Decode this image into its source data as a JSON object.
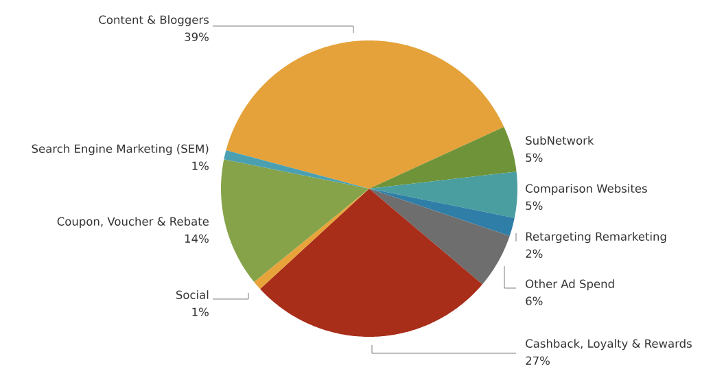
{
  "chart_data": {
    "type": "pie",
    "categories": [
      "Content & Bloggers",
      "SubNetwork",
      "Comparison Websites",
      "Retargeting Remarketing",
      "Other Ad Spend",
      "Cashback, Loyalty & Rewards",
      "Social",
      "Coupon, Voucher & Rebate",
      "Search Engine Marketing (SEM)"
    ],
    "values": [
      39,
      5,
      5,
      2,
      6,
      27,
      1,
      14,
      1
    ],
    "value_labels": [
      "39%",
      "5%",
      "5%",
      "2%",
      "6%",
      "27%",
      "1%",
      "14%",
      "1%"
    ],
    "colors": [
      "#e5a23a",
      "#6f9338",
      "#4a9ea0",
      "#2f7ea8",
      "#6e6e6e",
      "#a82e1a",
      "#e8a43a",
      "#86a34a",
      "#4aa0b0"
    ]
  }
}
